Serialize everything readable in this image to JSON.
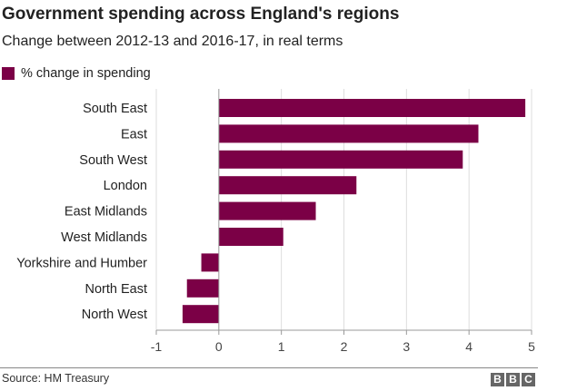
{
  "colors": {
    "bar": "#7b0046",
    "axis": "#999999",
    "grid": "#dddddd",
    "text": "#222222"
  },
  "footer": {
    "source": "Source: HM Treasury",
    "logo_letters": [
      "B",
      "B",
      "C"
    ]
  },
  "chart_data": {
    "type": "bar",
    "orientation": "horizontal",
    "title": "Government spending across England's regions",
    "subtitle": "Change between 2012-13 and 2016-17, in real terms",
    "xlabel": "",
    "ylabel": "",
    "xlim": [
      -1,
      5
    ],
    "ticks": [
      -1,
      0,
      1,
      2,
      3,
      4,
      5
    ],
    "grid": true,
    "legend_position": "top-left",
    "categories": [
      "South East",
      "East",
      "South West",
      "London",
      "East Midlands",
      "West Midlands",
      "Yorkshire and Humber",
      "North East",
      "North West"
    ],
    "series": [
      {
        "name": "% change in spending",
        "values": [
          4.9,
          4.15,
          3.9,
          2.2,
          1.55,
          1.03,
          -0.28,
          -0.51,
          -0.58
        ]
      }
    ]
  }
}
